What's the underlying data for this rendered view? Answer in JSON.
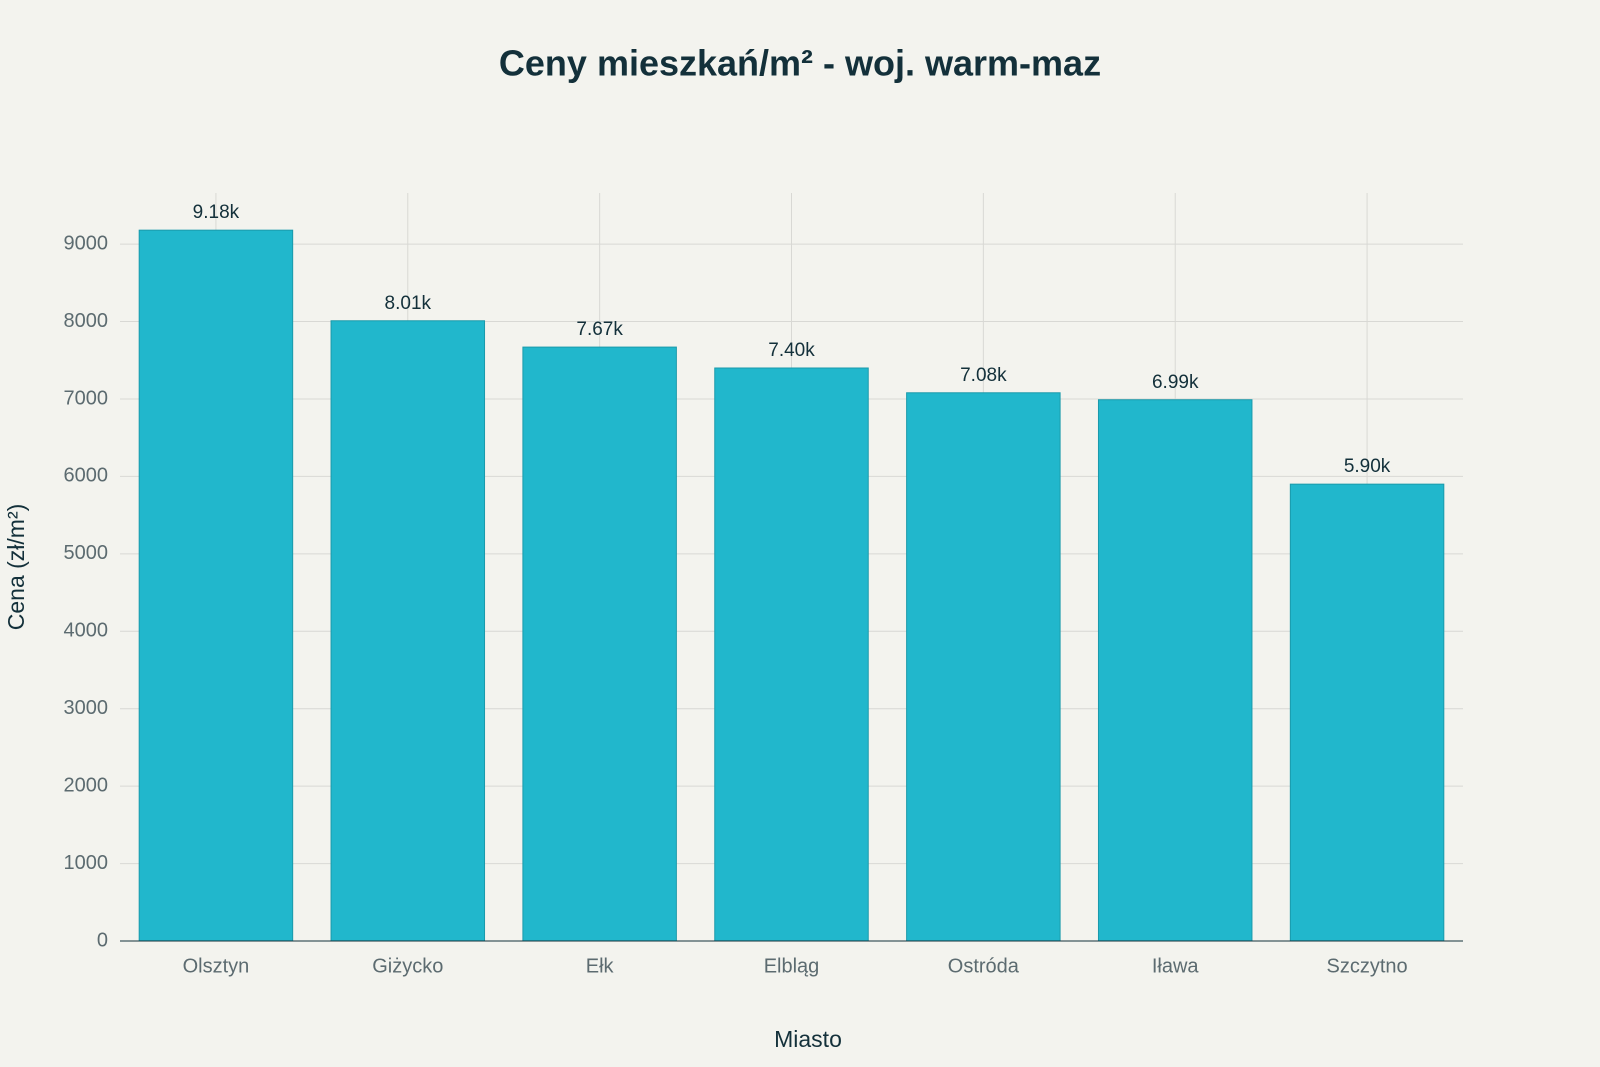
{
  "chart_data": {
    "type": "bar",
    "title": "Ceny mieszkań/m² - woj. warm-maz",
    "x_label": "Miasto",
    "y_label": "Cena (zł/m²)",
    "categories": [
      "Olsztyn",
      "Giżycko",
      "Ełk",
      "Elbląg",
      "Ostróda",
      "Iława",
      "Szczytno"
    ],
    "values": [
      9180,
      8010,
      7670,
      7400,
      7080,
      6990,
      5900
    ],
    "value_labels": [
      "9.18k",
      "8.01k",
      "7.67k",
      "7.40k",
      "7.08k",
      "6.99k",
      "5.90k"
    ],
    "color": "#21b7cc",
    "ylim": [
      0,
      9660
    ],
    "yticks": [
      0,
      1000,
      2000,
      3000,
      4000,
      5000,
      6000,
      7000,
      8000,
      9000
    ],
    "grid": true
  }
}
